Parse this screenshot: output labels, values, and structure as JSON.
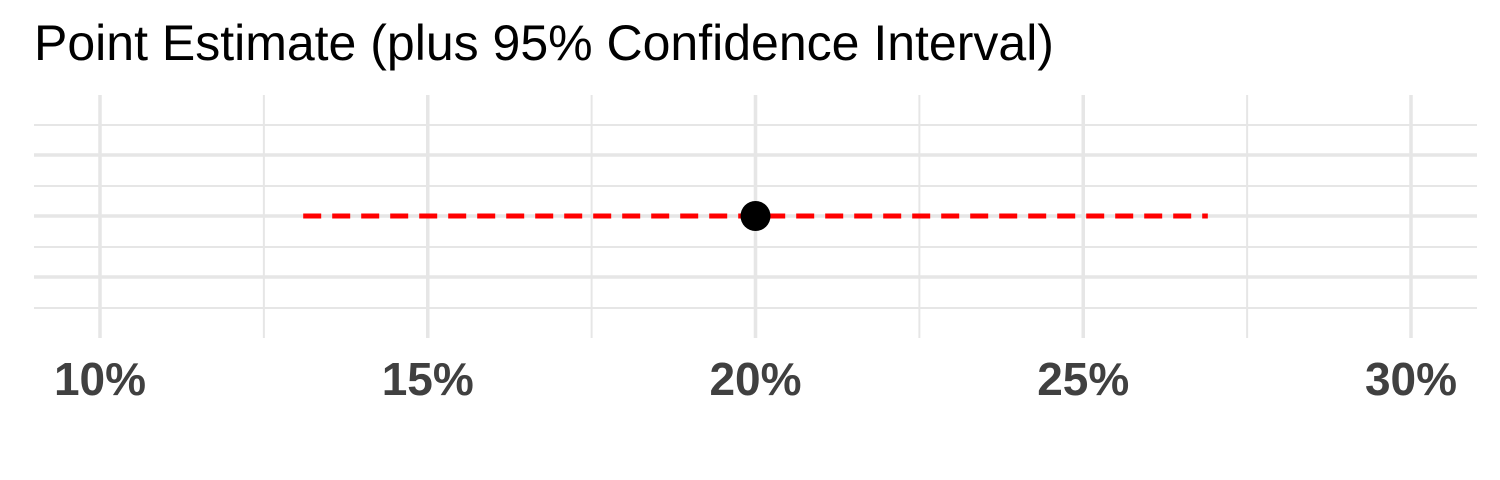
{
  "chart_data": {
    "type": "scatter",
    "title": "Point Estimate (plus 95% Confidence Interval)",
    "xlabel": "",
    "ylabel": "",
    "xlim": [
      0.095,
      0.31
    ],
    "x_ticks": [
      0.1,
      0.15,
      0.2,
      0.25,
      0.3
    ],
    "x_tick_labels": [
      "10%",
      "15%",
      "20%",
      "25%",
      "30%"
    ],
    "point_estimate": 0.2,
    "ci_lower": 0.131,
    "ci_upper": 0.269,
    "grid": true,
    "colors": {
      "point": "#000000",
      "interval": "#ff0000",
      "grid": "#e6e6e6",
      "tick_text": "#404040"
    }
  }
}
